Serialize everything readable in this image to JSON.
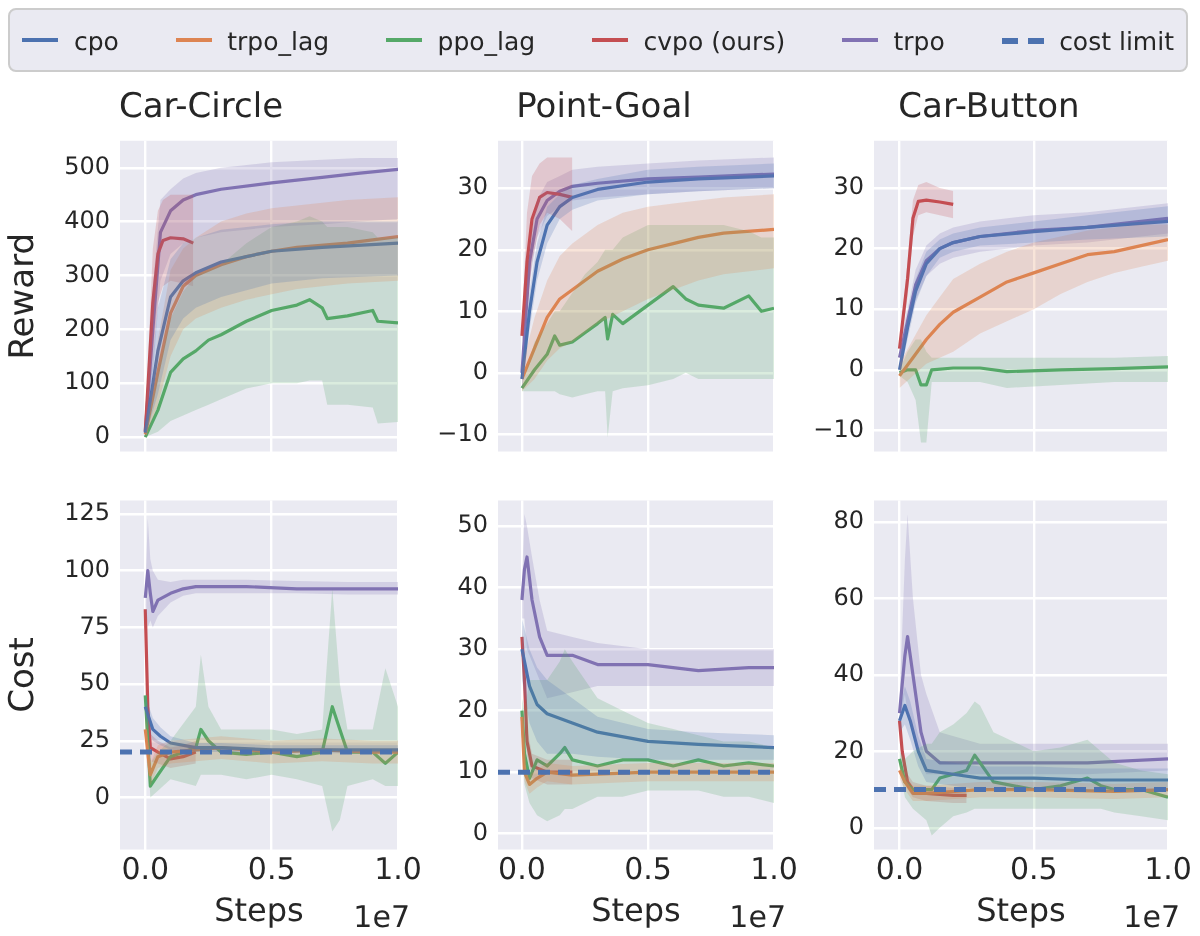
{
  "chart_data": [
    {
      "type": "line",
      "title": "Car-Circle",
      "ylabel": "Reward",
      "legend": "top",
      "grid": true,
      "tick_labels": "y",
      "xlim": [
        -0.1,
        1.0
      ],
      "ylim": [
        -27,
        550
      ],
      "xticks": [
        0,
        0.5,
        1
      ],
      "yticks": [
        0,
        100,
        200,
        300,
        400,
        500
      ],
      "series": [
        {
          "name": "cpo",
          "color": "#4c72b0",
          "x": [
            0,
            0.05,
            0.1,
            0.15,
            0.2,
            0.3,
            0.5,
            0.7,
            1.0
          ],
          "values": [
            8,
            160,
            260,
            290,
            305,
            325,
            345,
            352,
            360
          ],
          "lower": [
            0,
            80,
            180,
            220,
            240,
            260,
            285,
            295,
            300
          ],
          "upper": [
            15,
            240,
            330,
            360,
            370,
            385,
            395,
            400,
            400
          ]
        },
        {
          "name": "trpo_lag",
          "color": "#dd8452",
          "x": [
            0,
            0.05,
            0.1,
            0.15,
            0.2,
            0.3,
            0.4,
            0.5,
            0.6,
            0.8,
            1.0
          ],
          "values": [
            5,
            120,
            230,
            280,
            300,
            320,
            335,
            345,
            352,
            360,
            372
          ],
          "lower": [
            0,
            60,
            150,
            200,
            220,
            240,
            255,
            265,
            275,
            285,
            290
          ],
          "upper": [
            10,
            180,
            310,
            350,
            370,
            400,
            415,
            425,
            430,
            440,
            445
          ]
        },
        {
          "name": "ppo_lag",
          "color": "#55a868",
          "x": [
            0,
            0.05,
            0.1,
            0.15,
            0.2,
            0.25,
            0.3,
            0.4,
            0.5,
            0.6,
            0.65,
            0.7,
            0.72,
            0.8,
            0.9,
            0.92,
            1.0
          ],
          "values": [
            0,
            50,
            120,
            145,
            160,
            180,
            190,
            215,
            235,
            245,
            255,
            240,
            220,
            225,
            235,
            215,
            212
          ],
          "lower": [
            0,
            10,
            30,
            40,
            50,
            60,
            70,
            90,
            100,
            100,
            105,
            105,
            60,
            60,
            55,
            25,
            28
          ],
          "upper": [
            5,
            120,
            220,
            270,
            300,
            310,
            320,
            360,
            390,
            400,
            410,
            400,
            390,
            390,
            380,
            370,
            370
          ]
        },
        {
          "name": "cvpo (ours)",
          "color": "#c44e52",
          "x": [
            0,
            0.03,
            0.05,
            0.07,
            0.1,
            0.15,
            0.19
          ],
          "values": [
            10,
            250,
            340,
            365,
            370,
            368,
            360
          ],
          "lower": [
            0,
            150,
            250,
            280,
            290,
            285,
            280
          ],
          "upper": [
            20,
            350,
            420,
            440,
            450,
            450,
            450
          ]
        },
        {
          "name": "trpo",
          "color": "#8172b3",
          "x": [
            0,
            0.03,
            0.06,
            0.1,
            0.15,
            0.2,
            0.3,
            0.5,
            0.7,
            0.85,
            1.0
          ],
          "values": [
            10,
            200,
            380,
            420,
            440,
            450,
            460,
            472,
            482,
            490,
            497
          ],
          "lower": [
            0,
            120,
            290,
            340,
            360,
            370,
            380,
            390,
            395,
            400,
            405
          ],
          "upper": [
            20,
            280,
            440,
            460,
            480,
            490,
            500,
            510,
            515,
            518,
            518
          ]
        }
      ]
    },
    {
      "type": "line",
      "title": "Point-Goal",
      "grid": true,
      "tick_labels": "y",
      "xlim": [
        -0.095,
        1.0
      ],
      "ylim": [
        -12.8,
        37.7
      ],
      "xticks": [
        0,
        0.5,
        1
      ],
      "yticks": [
        {
          "value": -10,
          "label": "−10"
        },
        0,
        10,
        20,
        30
      ],
      "series": [
        {
          "color": "#4c72b0",
          "x": [
            0,
            0.03,
            0.06,
            0.1,
            0.15,
            0.2,
            0.3,
            0.5,
            0.7,
            1.0
          ],
          "values": [
            -1,
            10,
            18,
            24,
            27,
            28.5,
            29.8,
            31,
            31.5,
            32
          ],
          "lower": [
            -3,
            7,
            15,
            21,
            25,
            26.5,
            28,
            29,
            29.5,
            30
          ],
          "upper": [
            1,
            13,
            21,
            27,
            29,
            30.5,
            31.5,
            33,
            33.5,
            34
          ]
        },
        {
          "color": "#dd8452",
          "x": [
            0,
            0.05,
            0.1,
            0.15,
            0.2,
            0.3,
            0.4,
            0.5,
            0.6,
            0.7,
            0.8,
            1.0
          ],
          "values": [
            -1,
            4,
            9,
            12,
            13.5,
            16.5,
            18.5,
            20,
            21,
            22,
            22.7,
            23.3
          ],
          "lower": [
            -3,
            -1,
            2,
            4,
            5,
            8,
            10,
            12,
            13.5,
            15,
            16,
            17
          ],
          "upper": [
            1,
            9,
            15,
            19,
            21,
            24,
            26,
            27,
            27.5,
            28,
            28.5,
            29
          ]
        },
        {
          "color": "#55a868",
          "x": [
            0,
            0.05,
            0.1,
            0.13,
            0.15,
            0.2,
            0.25,
            0.3,
            0.33,
            0.34,
            0.36,
            0.4,
            0.5,
            0.6,
            0.65,
            0.7,
            0.8,
            0.9,
            0.95,
            1.0
          ],
          "values": [
            -2.5,
            0.5,
            3,
            6,
            4.5,
            5,
            6.5,
            8,
            9,
            5.5,
            9.5,
            8,
            11,
            14,
            12,
            11,
            10.5,
            12.5,
            10,
            10.5
          ],
          "lower": [
            -3,
            -3,
            -3,
            -3,
            -3.5,
            -4,
            -3.5,
            -3,
            -3,
            -10.5,
            -3,
            -2.5,
            -2,
            -1,
            0,
            -1,
            -1,
            -1,
            -1,
            -1
          ],
          "upper": [
            -2,
            5,
            8,
            10,
            10,
            13,
            16,
            18,
            20,
            20,
            20,
            22,
            24,
            24,
            24,
            24,
            24,
            23,
            22,
            22
          ]
        },
        {
          "color": "#c44e52",
          "x": [
            0,
            0.02,
            0.04,
            0.07,
            0.1,
            0.15,
            0.2
          ],
          "values": [
            6,
            18,
            25,
            28.5,
            29.3,
            29,
            28.5
          ],
          "lower": [
            5,
            10,
            18,
            24,
            26,
            25,
            23
          ],
          "upper": [
            7,
            26,
            32,
            34,
            35,
            35,
            35
          ]
        },
        {
          "color": "#8172b3",
          "x": [
            0,
            0.03,
            0.06,
            0.1,
            0.15,
            0.2,
            0.3,
            0.5,
            0.7,
            1.0
          ],
          "values": [
            0,
            18,
            25,
            28,
            29.5,
            30.3,
            30.8,
            31.5,
            31.8,
            32.3
          ],
          "lower": [
            -2,
            15,
            22,
            25.5,
            27,
            28,
            28.5,
            29,
            29.5,
            30
          ],
          "upper": [
            2,
            21,
            28,
            31,
            32,
            33,
            33.5,
            34,
            34.5,
            35
          ]
        }
      ]
    },
    {
      "type": "line",
      "title": "Car-Button",
      "grid": true,
      "tick_labels": "y",
      "xlim": [
        -0.095,
        1.0
      ],
      "ylim": [
        -13.5,
        37.8
      ],
      "xticks": [
        0,
        0.5,
        1
      ],
      "yticks": [
        {
          "value": -10,
          "label": "−10"
        },
        0,
        10,
        20,
        30
      ],
      "series": [
        {
          "color": "#4c72b0",
          "x": [
            0,
            0.03,
            0.06,
            0.1,
            0.15,
            0.2,
            0.3,
            0.5,
            0.7,
            1.0
          ],
          "values": [
            0,
            7,
            13,
            17.5,
            20,
            21,
            22,
            22.8,
            23.5,
            24.5
          ],
          "lower": [
            -1,
            5,
            11,
            15.5,
            18.5,
            19.5,
            20.5,
            21,
            21.5,
            22
          ],
          "upper": [
            1,
            9,
            15,
            19.5,
            21.5,
            22.5,
            23.5,
            24.5,
            25.5,
            27
          ]
        },
        {
          "color": "#dd8452",
          "x": [
            0,
            0.05,
            0.1,
            0.15,
            0.2,
            0.3,
            0.4,
            0.5,
            0.6,
            0.7,
            0.8,
            0.9,
            1.0
          ],
          "values": [
            -1,
            2,
            5,
            7.5,
            9.5,
            12,
            14.5,
            16,
            17.5,
            19,
            19.5,
            20.5,
            21.5
          ],
          "lower": [
            -3,
            -1,
            1,
            2,
            3,
            6,
            8,
            10,
            12.5,
            14.5,
            16,
            17,
            18
          ],
          "upper": [
            1,
            5,
            9,
            12,
            15,
            17.5,
            19.5,
            21,
            22,
            23,
            23.5,
            24,
            24
          ]
        },
        {
          "color": "#55a868",
          "x": [
            0,
            0.03,
            0.06,
            0.08,
            0.1,
            0.12,
            0.2,
            0.3,
            0.4,
            0.6,
            0.8,
            1.0
          ],
          "values": [
            -0.5,
            0,
            0,
            -2.5,
            -2.5,
            0,
            0.3,
            0.3,
            -0.3,
            0,
            0.2,
            0.5
          ],
          "lower": [
            -1,
            -2,
            -5,
            -12,
            -12,
            -2,
            -2,
            -2,
            -3,
            -2.5,
            -2,
            -2
          ],
          "upper": [
            0,
            3,
            5,
            5,
            3,
            2,
            2,
            2,
            2,
            2,
            2,
            2.3
          ]
        },
        {
          "color": "#c44e52",
          "x": [
            0,
            0.03,
            0.05,
            0.07,
            0.1,
            0.15,
            0.2
          ],
          "values": [
            3.5,
            15,
            25,
            27.8,
            28,
            27.7,
            27.3
          ],
          "lower": [
            3,
            12,
            22,
            25.5,
            26,
            25.5,
            25
          ],
          "upper": [
            4,
            18,
            28,
            30.5,
            31,
            30,
            29.5
          ]
        },
        {
          "color": "#8172b3",
          "x": [
            0,
            0.03,
            0.06,
            0.1,
            0.15,
            0.2,
            0.3,
            0.5,
            0.7,
            1.0
          ],
          "values": [
            2,
            8,
            14,
            18,
            20,
            21,
            22,
            23,
            23.5,
            25
          ],
          "lower": [
            0,
            6,
            11.5,
            15.5,
            17.5,
            18.5,
            19.5,
            20.5,
            21,
            22.5
          ],
          "upper": [
            4,
            10,
            16.5,
            20.5,
            22.5,
            23.5,
            24.5,
            25.5,
            26,
            27.5
          ]
        }
      ]
    },
    {
      "type": "line",
      "ylabel": "Cost",
      "xlabel": "Steps",
      "annotations": [
        "1e7"
      ],
      "grid": true,
      "xlim": [
        -0.1,
        1.0
      ],
      "ylim": [
        -23,
        131
      ],
      "xticks": [
        {
          "value": 0,
          "label": "0.0"
        },
        {
          "value": 0.5,
          "label": "0.5"
        },
        {
          "value": 1,
          "label": "1.0"
        }
      ],
      "yticks": [
        0,
        25,
        50,
        75,
        100,
        125
      ],
      "ref_lines": [
        {
          "axis": "y",
          "value": 20,
          "label": "cost limit",
          "color": "#4c72b0",
          "line_style": "dashed"
        }
      ],
      "series": [
        {
          "color": "#4c72b0",
          "x": [
            0,
            0.03,
            0.06,
            0.1,
            0.2,
            0.3,
            0.5,
            1.0
          ],
          "values": [
            40,
            30,
            27,
            24,
            22,
            22,
            21,
            21
          ],
          "lower": [
            35,
            25,
            23,
            21,
            20,
            20,
            19.5,
            19.5
          ],
          "upper": [
            45,
            35,
            31,
            27,
            24,
            24,
            23,
            23
          ]
        },
        {
          "color": "#dd8452",
          "x": [
            0,
            0.02,
            0.05,
            0.1,
            0.3,
            0.5,
            0.7,
            0.9,
            1.0
          ],
          "values": [
            30,
            10,
            18,
            20,
            22,
            20,
            21,
            20,
            20
          ],
          "lower": [
            20,
            5,
            13,
            15,
            17,
            15,
            16,
            15,
            15
          ],
          "upper": [
            40,
            15,
            23,
            25,
            27,
            25,
            26,
            25,
            25
          ]
        },
        {
          "color": "#55a868",
          "x": [
            0,
            0.02,
            0.05,
            0.1,
            0.2,
            0.22,
            0.25,
            0.3,
            0.4,
            0.5,
            0.6,
            0.7,
            0.74,
            0.77,
            0.8,
            0.9,
            0.95,
            1.0
          ],
          "values": [
            45,
            5,
            10,
            18,
            22,
            30,
            25,
            20,
            19,
            20,
            18,
            20,
            40,
            30,
            20,
            20,
            15,
            20
          ],
          "lower": [
            40,
            0,
            3,
            8,
            5,
            10,
            10,
            10,
            8,
            10,
            8,
            5,
            -15,
            -10,
            5,
            8,
            5,
            5
          ],
          "upper": [
            50,
            15,
            20,
            25,
            40,
            63,
            40,
            30,
            30,
            30,
            28,
            30,
            92,
            50,
            30,
            30,
            57,
            40
          ]
        },
        {
          "color": "#c44e52",
          "x": [
            0,
            0.01,
            0.02,
            0.05,
            0.1,
            0.15,
            0.2
          ],
          "values": [
            83,
            40,
            22,
            20,
            17,
            18,
            20
          ],
          "lower": [
            80,
            32,
            16,
            15,
            13,
            14,
            15
          ],
          "upper": [
            86,
            48,
            28,
            25,
            22,
            23,
            25
          ]
        },
        {
          "color": "#8172b3",
          "x": [
            0,
            0.01,
            0.02,
            0.03,
            0.05,
            0.1,
            0.15,
            0.2,
            0.4,
            0.6,
            0.8,
            1.0
          ],
          "values": [
            88,
            100,
            90,
            82,
            87,
            90,
            92,
            93,
            93,
            92,
            92,
            92
          ],
          "lower": [
            85,
            75,
            78,
            75,
            80,
            86,
            89,
            90,
            90,
            90,
            89.5,
            89.5
          ],
          "upper": [
            92,
            123,
            105,
            100,
            96,
            95,
            96,
            96,
            96,
            95.5,
            95,
            95
          ]
        }
      ]
    },
    {
      "type": "line",
      "xlabel": "Steps",
      "annotations": [
        "1e7"
      ],
      "grid": true,
      "xlim": [
        -0.095,
        1.0
      ],
      "ylim": [
        -2.6,
        54.2
      ],
      "xticks": [
        {
          "value": 0,
          "label": "0.0"
        },
        {
          "value": 0.5,
          "label": "0.5"
        },
        {
          "value": 1,
          "label": "1.0"
        }
      ],
      "yticks": [
        0,
        10,
        20,
        30,
        40,
        50
      ],
      "ref_lines": [
        {
          "axis": "y",
          "value": 10,
          "color": "#4c72b0",
          "line_style": "dashed"
        }
      ],
      "series": [
        {
          "color": "#4c72b0",
          "x": [
            0,
            0.03,
            0.06,
            0.1,
            0.2,
            0.3,
            0.5,
            0.7,
            1.0
          ],
          "values": [
            30,
            24,
            21,
            19.5,
            18,
            16.5,
            15,
            14.5,
            14
          ],
          "lower": [
            25,
            18,
            15,
            13,
            13,
            12.5,
            12,
            12,
            12
          ],
          "upper": [
            35,
            30,
            27,
            25,
            22,
            19,
            17,
            16.5,
            16
          ]
        },
        {
          "color": "#dd8452",
          "x": [
            0,
            0.01,
            0.03,
            0.06,
            0.1,
            0.2,
            0.5,
            0.8,
            1.0
          ],
          "values": [
            19,
            10,
            8,
            9,
            10,
            9.5,
            10,
            10,
            10
          ],
          "lower": [
            17,
            8.5,
            6.5,
            7.5,
            8.5,
            8,
            8.5,
            8.5,
            8.5
          ],
          "upper": [
            21,
            11.5,
            9.5,
            10.5,
            11.5,
            11,
            11.5,
            11.5,
            11.5
          ]
        },
        {
          "color": "#55a868",
          "x": [
            0,
            0.01,
            0.03,
            0.06,
            0.1,
            0.15,
            0.17,
            0.2,
            0.3,
            0.4,
            0.5,
            0.6,
            0.7,
            0.8,
            0.9,
            1.0
          ],
          "values": [
            20,
            13,
            9,
            12,
            11,
            13,
            14,
            12,
            11,
            12,
            12,
            11,
            12,
            11,
            11.5,
            11
          ],
          "lower": [
            18,
            8,
            5,
            3,
            2,
            3,
            4,
            4,
            6,
            6,
            7,
            7,
            7,
            6,
            6,
            5
          ],
          "upper": [
            22,
            20,
            25,
            25,
            25,
            28,
            30,
            28,
            22,
            20,
            18,
            17,
            16,
            15,
            15,
            14
          ]
        },
        {
          "color": "#c44e52",
          "x": [
            0,
            0.01,
            0.02,
            0.04,
            0.1,
            0.2
          ],
          "values": [
            32,
            25,
            15,
            11,
            10,
            10
          ],
          "lower": [
            30,
            23,
            13,
            9,
            8,
            8
          ],
          "upper": [
            34,
            27,
            17,
            13,
            12,
            12
          ]
        },
        {
          "color": "#8172b3",
          "x": [
            0,
            0.01,
            0.02,
            0.04,
            0.07,
            0.1,
            0.2,
            0.3,
            0.5,
            0.7,
            0.9,
            1.0
          ],
          "values": [
            38,
            43,
            45,
            38,
            32,
            29,
            29,
            27.5,
            27.5,
            26.5,
            27,
            27
          ],
          "lower": [
            35,
            35,
            30,
            28,
            25,
            22,
            23,
            24,
            24,
            24,
            24,
            24
          ],
          "upper": [
            41,
            52,
            50,
            45,
            38,
            33,
            32,
            31,
            30,
            30,
            30,
            30
          ]
        }
      ]
    },
    {
      "type": "line",
      "xlabel": "Steps",
      "annotations": [
        "1e7"
      ],
      "grid": true,
      "xlim": [
        -0.095,
        1.0
      ],
      "ylim": [
        -5.7,
        85.6
      ],
      "xticks": [
        {
          "value": 0,
          "label": "0.0"
        },
        {
          "value": 0.5,
          "label": "0.5"
        },
        {
          "value": 1,
          "label": "1.0"
        }
      ],
      "yticks": [
        0,
        20,
        40,
        60,
        80
      ],
      "ref_lines": [
        {
          "axis": "y",
          "value": 10,
          "color": "#4c72b0",
          "line_style": "dashed"
        }
      ],
      "series": [
        {
          "color": "#4c72b0",
          "x": [
            0,
            0.02,
            0.04,
            0.07,
            0.1,
            0.2,
            0.3,
            0.5,
            0.7,
            1.0
          ],
          "values": [
            28,
            32,
            28,
            20,
            15,
            14,
            13,
            13,
            12.5,
            12.5
          ],
          "lower": [
            25,
            27,
            23,
            16,
            12,
            11,
            10,
            10,
            9.5,
            9.5
          ],
          "upper": [
            31,
            37,
            33,
            24,
            18,
            17,
            16,
            16,
            15.5,
            15.5
          ]
        },
        {
          "color": "#dd8452",
          "x": [
            0,
            0.02,
            0.05,
            0.1,
            0.3,
            0.5,
            0.8,
            1.0
          ],
          "values": [
            15,
            12,
            9,
            9,
            10,
            10,
            9.5,
            10
          ],
          "lower": [
            13,
            10,
            7,
            7,
            8,
            8,
            7.5,
            8
          ],
          "upper": [
            17,
            14,
            11,
            11,
            12,
            12,
            11.5,
            12
          ]
        },
        {
          "color": "#55a868",
          "x": [
            0,
            0.02,
            0.05,
            0.1,
            0.12,
            0.15,
            0.2,
            0.25,
            0.28,
            0.3,
            0.35,
            0.5,
            0.6,
            0.7,
            0.75,
            0.8,
            0.9,
            1.0
          ],
          "values": [
            18,
            12,
            10,
            10,
            10,
            13,
            14,
            15,
            19,
            17,
            12,
            10,
            11,
            13,
            11,
            10,
            10,
            8
          ],
          "lower": [
            16,
            8,
            5,
            2,
            -2,
            0,
            3,
            4,
            5,
            5,
            5,
            5,
            5,
            5,
            5,
            4,
            3,
            2
          ],
          "upper": [
            20,
            18,
            20,
            22,
            22,
            25,
            27,
            30,
            33,
            32,
            25,
            20,
            21,
            23,
            20,
            17,
            15,
            14
          ]
        },
        {
          "color": "#c44e52",
          "x": [
            0,
            0.01,
            0.03,
            0.05,
            0.1,
            0.2,
            0.25
          ],
          "values": [
            28,
            20,
            12,
            10,
            9,
            8.5,
            8.5
          ],
          "lower": [
            26,
            18,
            10,
            8,
            7,
            6.5,
            6.5
          ],
          "upper": [
            30,
            22,
            14,
            12,
            11,
            10.5,
            10.5
          ]
        },
        {
          "color": "#8172b3",
          "x": [
            0,
            0.02,
            0.03,
            0.05,
            0.08,
            0.1,
            0.15,
            0.3,
            0.5,
            0.7,
            1.0
          ],
          "values": [
            30,
            45,
            50,
            40,
            25,
            20,
            17,
            17,
            17,
            17,
            18
          ],
          "lower": [
            27,
            35,
            30,
            25,
            17,
            14,
            14,
            14,
            14,
            14,
            15
          ],
          "upper": [
            33,
            70,
            82,
            60,
            40,
            35,
            25,
            22,
            22,
            22,
            22
          ]
        }
      ]
    }
  ]
}
